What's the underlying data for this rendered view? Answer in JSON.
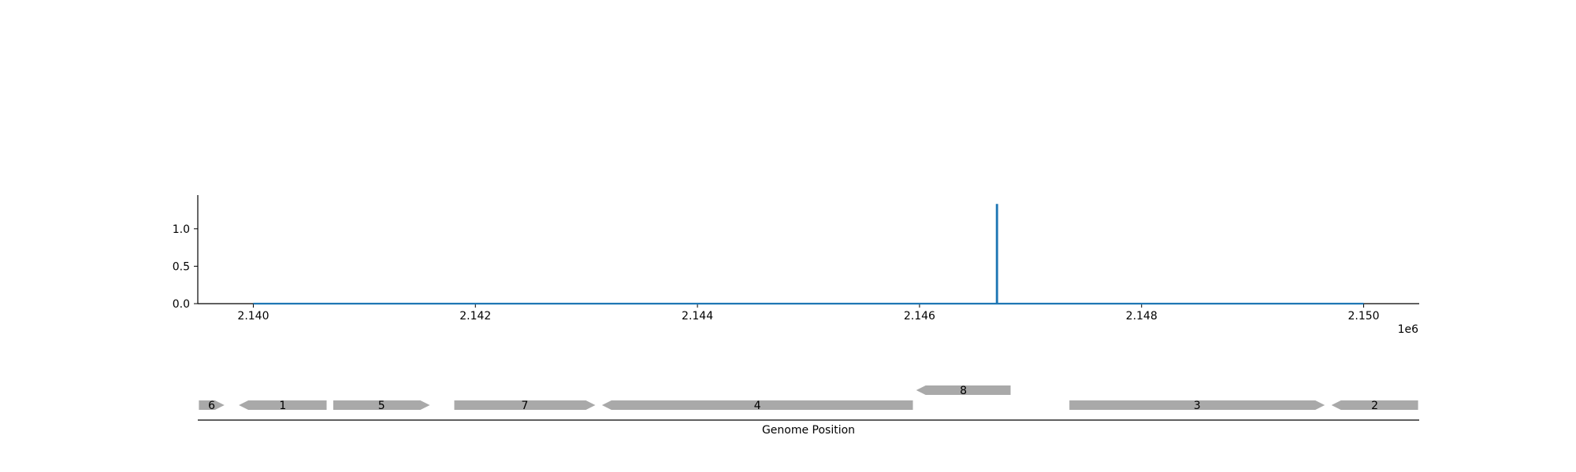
{
  "chart_data": [
    {
      "type": "line",
      "xlim": [
        2139500,
        2150500
      ],
      "ylim": [
        0,
        1.45
      ],
      "x_ticks": [
        2140000,
        2142000,
        2144000,
        2146000,
        2148000,
        2150000
      ],
      "x_tick_labels": [
        "2.140",
        "2.142",
        "2.144",
        "2.146",
        "2.148",
        "2.150"
      ],
      "x_offset_label": "1e6",
      "y_ticks": [
        0.0,
        0.5,
        1.0
      ],
      "y_tick_labels": [
        "0.0",
        "0.5",
        "1.0"
      ],
      "grid": false,
      "series": [
        {
          "color": "#1f77b4",
          "x": [
            2140000,
            2146695,
            2146695,
            2146700,
            2146700,
            2150000
          ],
          "y": [
            0,
            0,
            1.32,
            1.32,
            0,
            0
          ]
        }
      ]
    },
    {
      "type": "gene-map",
      "xlabel": "Genome Position",
      "xlim": [
        2139500,
        2150500
      ],
      "color": "#a9a9a9",
      "genes": [
        {
          "label": "6",
          "start": 2139510,
          "end": 2139740,
          "strand": "+",
          "row": 0
        },
        {
          "label": "1",
          "start": 2139870,
          "end": 2140660,
          "strand": "-",
          "row": 0
        },
        {
          "label": "5",
          "start": 2140720,
          "end": 2141590,
          "strand": "+",
          "row": 0
        },
        {
          "label": "7",
          "start": 2141810,
          "end": 2143080,
          "strand": "+",
          "row": 0
        },
        {
          "label": "4",
          "start": 2143140,
          "end": 2145940,
          "strand": "-",
          "row": 0
        },
        {
          "label": "8",
          "start": 2145970,
          "end": 2146820,
          "strand": "-",
          "row": 1
        },
        {
          "label": "3",
          "start": 2147350,
          "end": 2149650,
          "strand": "+",
          "row": 0
        },
        {
          "label": "2",
          "start": 2149710,
          "end": 2150490,
          "strand": "-",
          "row": 0
        }
      ]
    }
  ]
}
